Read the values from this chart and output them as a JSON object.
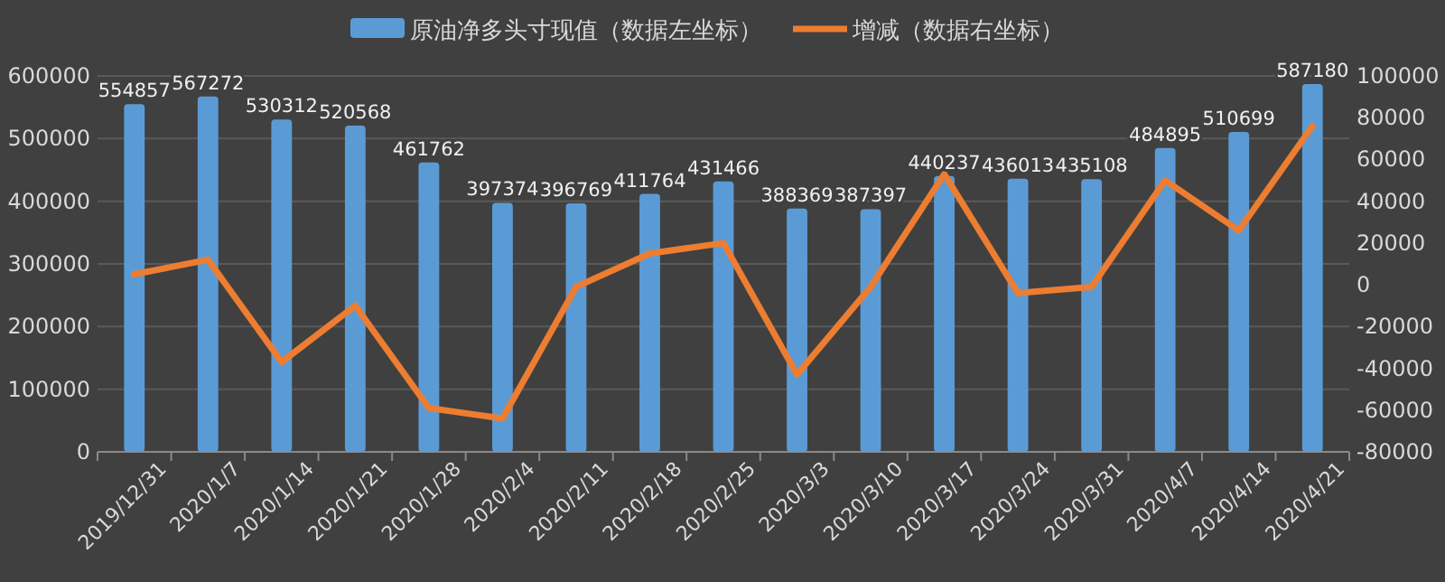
{
  "chart_data": {
    "type": "bar",
    "categories": [
      "2019/12/31",
      "2020/1/7",
      "2020/1/14",
      "2020/1/21",
      "2020/1/28",
      "2020/2/4",
      "2020/2/11",
      "2020/2/18",
      "2020/2/25",
      "2020/3/3",
      "2020/3/10",
      "2020/3/17",
      "2020/3/24",
      "2020/3/31",
      "2020/4/7",
      "2020/4/14",
      "2020/4/21"
    ],
    "series": [
      {
        "name": "原油净多头寸现值（数据左坐标）",
        "color": "#5b9bd5",
        "values": [
          554857,
          567272,
          530312,
          520568,
          461762,
          397374,
          396769,
          411764,
          431466,
          388369,
          387397,
          440237,
          436013,
          435108,
          484895,
          510699,
          587180
        ],
        "value_labels": [
          "554857",
          "567272",
          "530312",
          "520568",
          "461762",
          "397374",
          "396769",
          "411764",
          "431466",
          "388369",
          "387397",
          "440237",
          "436013",
          "435108",
          "484895",
          "510699",
          "587180"
        ]
      },
      {
        "name": "增减（数据右坐标）",
        "type": "line",
        "axis": "y2",
        "color": "#ed7d31",
        "values": [
          5000,
          12000,
          -37000,
          -10000,
          -59000,
          -64000,
          -1000,
          15000,
          20000,
          -43000,
          -1000,
          53000,
          -4000,
          -1000,
          50000,
          26000,
          76000
        ]
      }
    ],
    "ylim": [
      0,
      600000
    ],
    "yticks": [
      0,
      100000,
      200000,
      300000,
      400000,
      500000,
      600000
    ],
    "y2lim": [
      -80000,
      100000
    ],
    "y2ticks": [
      -80000,
      -60000,
      -40000,
      -20000,
      0,
      20000,
      40000,
      60000,
      80000,
      100000
    ],
    "grid": "y",
    "legend": "top",
    "marker": "none",
    "line_style": "solid"
  }
}
